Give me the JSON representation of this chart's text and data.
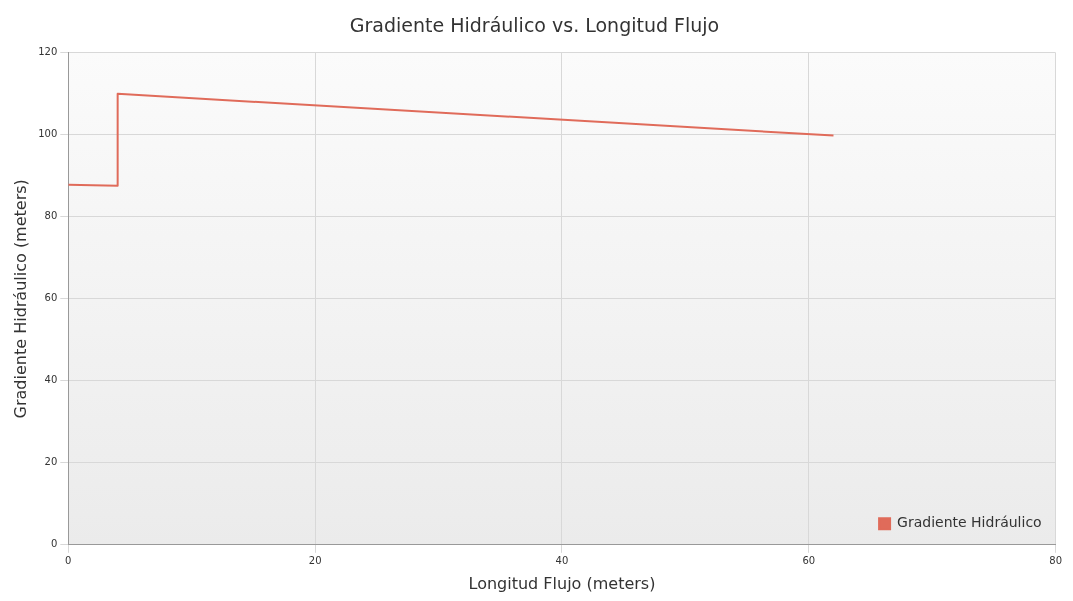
{
  "chart_data": {
    "type": "line",
    "title": "Gradiente Hidráulico vs. Longitud Flujo",
    "xlabel": "Longitud Flujo (meters)",
    "ylabel": "Gradiente Hidráulico (meters)",
    "series": [
      {
        "name": "Gradiente Hidráulico",
        "color": "#e06b5a",
        "x": [
          0,
          4,
          4,
          62
        ],
        "values": [
          87.8,
          87.6,
          110,
          99.8
        ]
      }
    ],
    "xlim": [
      0,
      80
    ],
    "xticks": [
      0,
      20,
      40,
      60,
      80
    ],
    "ylim": [
      0,
      120
    ],
    "yticks": [
      0,
      20,
      40,
      60,
      80,
      100,
      120
    ],
    "grid": true,
    "legend": "bottom right",
    "marker": "none",
    "line_style": "solid"
  }
}
